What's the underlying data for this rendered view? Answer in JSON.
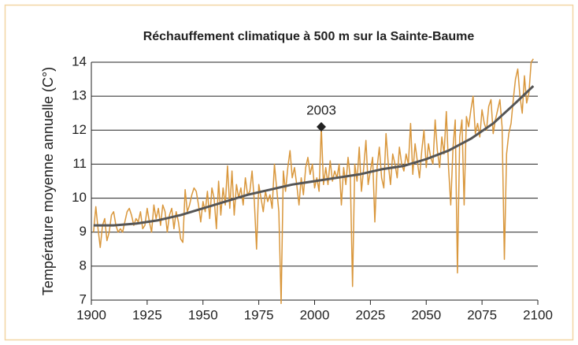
{
  "chart_data": {
    "type": "line",
    "title": "Réchauffement climatique à 500 m sur la Sainte-Baume",
    "ylabel": "Température moyenne annuelle (C°)",
    "xlim": [
      1900,
      2100
    ],
    "xticks": [
      1900,
      1925,
      1950,
      1975,
      2000,
      2025,
      2050,
      2075,
      2100
    ],
    "ylim": [
      7,
      14
    ],
    "yticks": [
      7,
      8,
      9,
      10,
      11,
      12,
      13,
      14
    ],
    "grid": true,
    "series": [
      {
        "color": "#d9973c",
        "x": [
          1901,
          1902,
          1903,
          1904,
          1905,
          1906,
          1907,
          1908,
          1909,
          1910,
          1911,
          1912,
          1913,
          1914,
          1915,
          1916,
          1917,
          1918,
          1919,
          1920,
          1921,
          1922,
          1923,
          1924,
          1925,
          1926,
          1927,
          1928,
          1929,
          1930,
          1931,
          1932,
          1933,
          1934,
          1935,
          1936,
          1937,
          1938,
          1939,
          1940,
          1941,
          1942,
          1943,
          1944,
          1945,
          1946,
          1947,
          1948,
          1949,
          1950,
          1951,
          1952,
          1953,
          1954,
          1955,
          1956,
          1957,
          1958,
          1959,
          1960,
          1961,
          1962,
          1963,
          1964,
          1965,
          1966,
          1967,
          1968,
          1969,
          1970,
          1971,
          1972,
          1973,
          1974,
          1975,
          1976,
          1977,
          1978,
          1979,
          1980,
          1981,
          1982,
          1983,
          1984,
          1985,
          1986,
          1987,
          1988,
          1989,
          1990,
          1991,
          1992,
          1993,
          1994,
          1995,
          1996,
          1997,
          1998,
          1999,
          2000,
          2001,
          2002,
          2003,
          2004,
          2005,
          2006,
          2007,
          2008,
          2009,
          2010,
          2011,
          2012,
          2013,
          2014,
          2015,
          2016,
          2017,
          2018,
          2019,
          2020,
          2021,
          2022,
          2023,
          2024,
          2025,
          2026,
          2027,
          2028,
          2029,
          2030,
          2031,
          2032,
          2033,
          2034,
          2035,
          2036,
          2037,
          2038,
          2039,
          2040,
          2041,
          2042,
          2043,
          2044,
          2045,
          2046,
          2047,
          2048,
          2049,
          2050,
          2051,
          2052,
          2053,
          2054,
          2055,
          2056,
          2057,
          2058,
          2059,
          2060,
          2061,
          2062,
          2063,
          2064,
          2065,
          2066,
          2067,
          2068,
          2069,
          2070,
          2071,
          2072,
          2073,
          2074,
          2075,
          2076,
          2077,
          2078,
          2079,
          2080,
          2081,
          2082,
          2083,
          2084,
          2085,
          2086,
          2087,
          2088,
          2089,
          2090,
          2091,
          2092,
          2093,
          2094,
          2095,
          2096,
          2097,
          2098
        ],
        "values": [
          9.0,
          9.75,
          9.1,
          8.55,
          9.2,
          9.4,
          8.75,
          9.0,
          9.5,
          9.6,
          9.2,
          9.0,
          9.1,
          9.0,
          9.3,
          9.6,
          9.7,
          9.5,
          9.2,
          9.4,
          9.3,
          9.6,
          9.1,
          9.2,
          9.7,
          9.3,
          9.0,
          9.8,
          9.4,
          9.7,
          9.2,
          9.8,
          9.6,
          9.0,
          9.5,
          9.7,
          9.1,
          9.6,
          9.3,
          8.8,
          8.7,
          10.25,
          9.6,
          9.8,
          10.1,
          10.3,
          10.2,
          9.8,
          9.3,
          9.9,
          9.6,
          10.2,
          9.4,
          10.3,
          10.0,
          9.1,
          10.5,
          9.5,
          10.3,
          9.8,
          10.95,
          9.7,
          10.8,
          9.5,
          10.4,
          10.0,
          10.3,
          9.8,
          10.6,
          10.1,
          10.2,
          10.8,
          9.9,
          8.5,
          10.4,
          10.0,
          9.6,
          10.2,
          9.9,
          10.1,
          9.7,
          11.0,
          10.3,
          9.6,
          6.9,
          10.8,
          10.2,
          10.9,
          11.4,
          10.6,
          10.9,
          10.4,
          9.8,
          10.6,
          10.1,
          10.9,
          11.2,
          10.7,
          11.0,
          10.3,
          10.6,
          10.2,
          12.1,
          10.4,
          10.9,
          10.4,
          11.1,
          10.5,
          10.8,
          10.6,
          11.0,
          9.8,
          10.9,
          10.4,
          11.2,
          10.6,
          7.4,
          11.0,
          10.5,
          11.5,
          10.2,
          10.9,
          11.7,
          10.4,
          10.8,
          11.2,
          9.3,
          10.9,
          11.5,
          10.6,
          10.3,
          11.9,
          11.0,
          10.4,
          11.3,
          11.0,
          10.6,
          11.5,
          11.0,
          10.8,
          11.3,
          11.0,
          12.2,
          10.7,
          11.6,
          11.1,
          10.6,
          11.4,
          12.0,
          10.9,
          11.6,
          11.2,
          11.0,
          12.3,
          11.4,
          10.9,
          11.8,
          11.3,
          12.55,
          10.9,
          9.8,
          11.5,
          12.3,
          7.8,
          11.8,
          12.3,
          9.8,
          12.4,
          12.1,
          12.6,
          13.0,
          11.9,
          12.2,
          11.8,
          12.6,
          12.2,
          12.0,
          12.7,
          12.9,
          11.9,
          12.3,
          12.6,
          12.9,
          12.1,
          8.2,
          11.3,
          11.9,
          12.2,
          12.9,
          13.5,
          13.8,
          13.0,
          12.5,
          13.6,
          12.8,
          13.1,
          14.0,
          14.1
        ]
      },
      {
        "color": "#555555",
        "x": [
          1901,
          1910,
          1920,
          1930,
          1940,
          1950,
          1960,
          1970,
          1980,
          1990,
          2000,
          2010,
          2020,
          2030,
          2040,
          2050,
          2060,
          2070,
          2080,
          2090,
          2098
        ],
        "values": [
          9.2,
          9.2,
          9.25,
          9.35,
          9.5,
          9.7,
          9.9,
          10.1,
          10.25,
          10.4,
          10.5,
          10.6,
          10.7,
          10.85,
          10.95,
          11.15,
          11.4,
          11.75,
          12.2,
          12.8,
          13.3
        ]
      }
    ],
    "annotation": {
      "text": "2003",
      "x": 2003,
      "y": 12.1
    }
  }
}
